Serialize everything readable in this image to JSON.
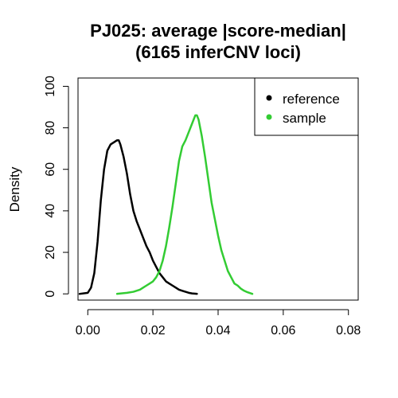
{
  "chart_data": {
    "type": "line",
    "title": "PJ025: average |score-median|",
    "subtitle": "(6165 inferCNV loci)",
    "xlabel": "",
    "ylabel": "Density",
    "xlim": [
      -0.003,
      0.083
    ],
    "ylim": [
      -3,
      104
    ],
    "x_ticks": [
      0.0,
      0.02,
      0.04,
      0.06,
      0.08
    ],
    "x_tick_labels": [
      "0.00",
      "0.02",
      "0.04",
      "0.06",
      "0.08"
    ],
    "y_ticks": [
      0,
      20,
      40,
      60,
      80,
      100
    ],
    "y_tick_labels": [
      "0",
      "20",
      "40",
      "60",
      "80",
      "100"
    ],
    "grid": false,
    "legend_position": "top-right",
    "series": [
      {
        "name": "reference",
        "color": "#000000",
        "points": [
          [
            -0.0025,
            0
          ],
          [
            0.0,
            0.5
          ],
          [
            0.001,
            3
          ],
          [
            0.002,
            10
          ],
          [
            0.003,
            25
          ],
          [
            0.004,
            45
          ],
          [
            0.005,
            60
          ],
          [
            0.006,
            69
          ],
          [
            0.007,
            72
          ],
          [
            0.008,
            73
          ],
          [
            0.009,
            74
          ],
          [
            0.0095,
            74
          ],
          [
            0.01,
            72
          ],
          [
            0.011,
            66
          ],
          [
            0.012,
            58
          ],
          [
            0.013,
            48
          ],
          [
            0.014,
            40
          ],
          [
            0.015,
            35
          ],
          [
            0.016,
            31
          ],
          [
            0.017,
            27
          ],
          [
            0.018,
            23
          ],
          [
            0.019,
            20
          ],
          [
            0.02,
            16
          ],
          [
            0.021,
            13
          ],
          [
            0.022,
            10
          ],
          [
            0.023,
            8
          ],
          [
            0.024,
            6
          ],
          [
            0.025,
            5
          ],
          [
            0.026,
            4
          ],
          [
            0.027,
            3
          ],
          [
            0.028,
            2
          ],
          [
            0.029,
            1.5
          ],
          [
            0.03,
            1
          ],
          [
            0.031,
            0.5
          ],
          [
            0.032,
            0.2
          ],
          [
            0.0335,
            0
          ]
        ]
      },
      {
        "name": "sample",
        "color": "#33cc33",
        "points": [
          [
            0.009,
            0
          ],
          [
            0.012,
            0.5
          ],
          [
            0.014,
            1
          ],
          [
            0.016,
            2
          ],
          [
            0.017,
            3
          ],
          [
            0.018,
            4
          ],
          [
            0.019,
            5
          ],
          [
            0.02,
            6
          ],
          [
            0.021,
            8
          ],
          [
            0.022,
            11
          ],
          [
            0.023,
            16
          ],
          [
            0.024,
            23
          ],
          [
            0.025,
            32
          ],
          [
            0.026,
            42
          ],
          [
            0.027,
            53
          ],
          [
            0.028,
            64
          ],
          [
            0.029,
            71
          ],
          [
            0.03,
            74
          ],
          [
            0.031,
            78
          ],
          [
            0.032,
            82
          ],
          [
            0.033,
            86
          ],
          [
            0.0335,
            86
          ],
          [
            0.034,
            84
          ],
          [
            0.035,
            76
          ],
          [
            0.036,
            66
          ],
          [
            0.037,
            55
          ],
          [
            0.038,
            44
          ],
          [
            0.039,
            36
          ],
          [
            0.04,
            28
          ],
          [
            0.041,
            21
          ],
          [
            0.042,
            16
          ],
          [
            0.043,
            11
          ],
          [
            0.044,
            8
          ],
          [
            0.045,
            5
          ],
          [
            0.046,
            4
          ],
          [
            0.047,
            2.5
          ],
          [
            0.048,
            1.5
          ],
          [
            0.049,
            0.8
          ],
          [
            0.0505,
            0
          ]
        ]
      }
    ]
  }
}
